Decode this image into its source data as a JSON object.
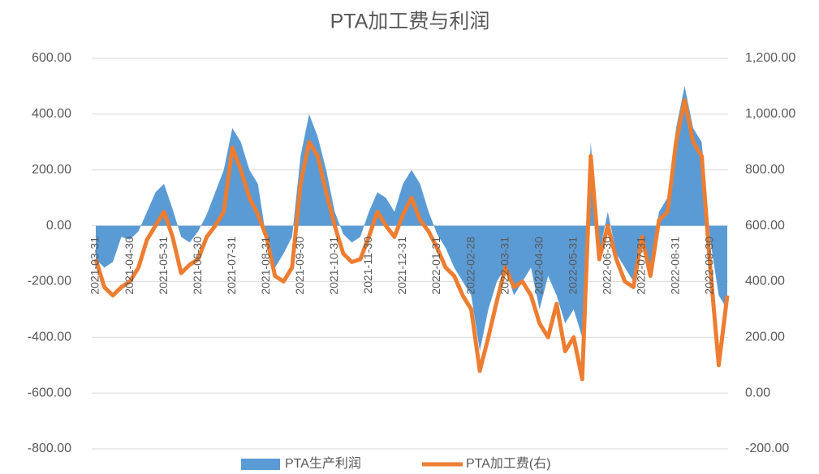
{
  "chart_data": {
    "type": "area-line",
    "title": "PTA加工费与利润",
    "categories": [
      "2021-03-31",
      null,
      null,
      null,
      "2021-04-30",
      null,
      null,
      null,
      "2021-05-31",
      null,
      null,
      null,
      "2021-06-30",
      null,
      null,
      null,
      "2021-07-31",
      null,
      null,
      null,
      "2021-08-31",
      null,
      null,
      null,
      "2021-09-30",
      null,
      null,
      null,
      "2021-10-31",
      null,
      null,
      null,
      "2021-11-30",
      null,
      null,
      null,
      "2021-12-31",
      null,
      null,
      null,
      "2022-01-31",
      null,
      null,
      null,
      "2022-02-28",
      null,
      null,
      null,
      "2022-03-31",
      null,
      null,
      null,
      "2022-04-30",
      null,
      null,
      null,
      "2022-05-31",
      null,
      null,
      null,
      "2022-06-30",
      null,
      null,
      null,
      "2022-07-31",
      null,
      null,
      null,
      "2022-08-31",
      null,
      null,
      null,
      "2022-09-30",
      null,
      null
    ],
    "series": [
      {
        "name": "PTA生产利润",
        "color": "#5b9bd5",
        "axis": "y",
        "values": [
          -120,
          -150,
          -130,
          -40,
          -50,
          -20,
          50,
          120,
          150,
          60,
          -40,
          -60,
          -20,
          40,
          120,
          200,
          350,
          300,
          200,
          150,
          -50,
          -150,
          -100,
          -40,
          250,
          400,
          320,
          200,
          50,
          -30,
          -60,
          -40,
          50,
          120,
          100,
          50,
          150,
          200,
          150,
          50,
          -30,
          -80,
          -150,
          -200,
          -250,
          -450,
          -300,
          -200,
          -150,
          -250,
          -200,
          -150,
          -300,
          -180,
          -250,
          -350,
          -300,
          -400,
          300,
          -100,
          50,
          -100,
          -150,
          -200,
          -50,
          -150,
          50,
          100,
          350,
          500,
          350,
          300,
          -50,
          -250,
          -300
        ]
      },
      {
        "name": "PTA加工费(右)",
        "color": "#ed7d31",
        "axis": "y2",
        "values": [
          480,
          380,
          350,
          380,
          400,
          450,
          550,
          600,
          650,
          560,
          430,
          460,
          480,
          560,
          600,
          650,
          880,
          800,
          700,
          640,
          560,
          420,
          400,
          450,
          750,
          900,
          850,
          720,
          600,
          500,
          470,
          480,
          560,
          650,
          600,
          560,
          640,
          700,
          620,
          580,
          520,
          450,
          420,
          350,
          300,
          80,
          200,
          330,
          450,
          380,
          400,
          350,
          250,
          200,
          320,
          150,
          200,
          50,
          850,
          480,
          600,
          480,
          400,
          380,
          560,
          420,
          620,
          650,
          900,
          1050,
          900,
          850,
          450,
          100,
          350
        ]
      }
    ],
    "ylim": [
      -800,
      600
    ],
    "yticks": [
      {
        "value": -800,
        "label": "-800.00"
      },
      {
        "value": -600,
        "label": "-600.00"
      },
      {
        "value": -400,
        "label": "-400.00"
      },
      {
        "value": -200,
        "label": "-200.00"
      },
      {
        "value": 0,
        "label": "0.00"
      },
      {
        "value": 200,
        "label": "200.00"
      },
      {
        "value": 400,
        "label": "400.00"
      },
      {
        "value": 600,
        "label": "600.00"
      }
    ],
    "y2lim": [
      -200,
      1200
    ],
    "y2ticks": [
      {
        "value": -200,
        "label": "-200.00"
      },
      {
        "value": 0,
        "label": "0.00"
      },
      {
        "value": 200,
        "label": "200.00"
      },
      {
        "value": 400,
        "label": "400.00"
      },
      {
        "value": 600,
        "label": "600.00"
      },
      {
        "value": 800,
        "label": "800.00"
      },
      {
        "value": 1000,
        "label": "1,000.00"
      },
      {
        "value": 1200,
        "label": "1,200.00"
      }
    ],
    "grid": true,
    "legend": "bottom"
  }
}
